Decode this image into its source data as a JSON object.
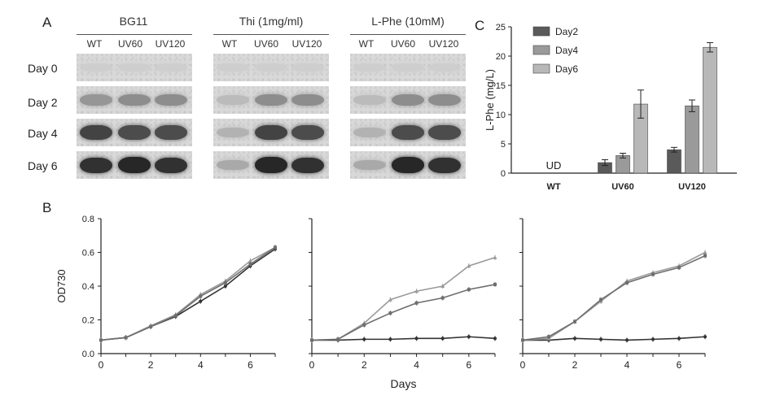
{
  "panel_labels": {
    "a": "A",
    "b": "B",
    "c": "C"
  },
  "panel_a": {
    "groups": [
      {
        "title": "BG11",
        "lanes": [
          "WT",
          "UV60",
          "UV120"
        ]
      },
      {
        "title": "Thi (1mg/ml)",
        "lanes": [
          "WT",
          "UV60",
          "UV120"
        ]
      },
      {
        "title": "L-Phe (10mM)",
        "lanes": [
          "WT",
          "UV60",
          "UV120"
        ]
      }
    ],
    "rows": [
      "Day 0",
      "Day 2",
      "Day 4",
      "Day 6"
    ],
    "band_intensity": [
      [
        [
          0.05,
          0.05,
          0.05
        ],
        [
          0.35,
          0.4,
          0.4
        ],
        [
          0.8,
          0.75,
          0.75
        ],
        [
          0.9,
          0.95,
          0.9
        ]
      ],
      [
        [
          0.05,
          0.05,
          0.05
        ],
        [
          0.15,
          0.4,
          0.4
        ],
        [
          0.2,
          0.8,
          0.75
        ],
        [
          0.25,
          0.95,
          0.9
        ]
      ],
      [
        [
          0.05,
          0.05,
          0.05
        ],
        [
          0.15,
          0.4,
          0.4
        ],
        [
          0.2,
          0.75,
          0.75
        ],
        [
          0.25,
          0.95,
          0.9
        ]
      ]
    ]
  },
  "colors": {
    "day2": "#5a5a5a",
    "day4": "#9a9a9a",
    "day6": "#b8b8b8",
    "line_dark": "#333333",
    "line_light": "#9a9a9a"
  },
  "chart_data": [
    {
      "type": "bar",
      "panel": "C",
      "categories": [
        "WT",
        "UV60",
        "UV120"
      ],
      "series": [
        {
          "name": "Day2",
          "values": [
            0,
            1.8,
            4.0
          ],
          "errors": [
            0,
            0.5,
            0.4
          ]
        },
        {
          "name": "Day4",
          "values": [
            0,
            3.0,
            11.5
          ],
          "errors": [
            0,
            0.4,
            1.0
          ]
        },
        {
          "name": "Day6",
          "values": [
            0,
            11.8,
            21.5
          ],
          "errors": [
            0,
            2.4,
            0.8
          ]
        }
      ],
      "annotation": "UD",
      "ylabel": "L-Phe (mg/L)",
      "ylim": [
        0,
        25
      ],
      "yticks": [
        0,
        5,
        10,
        15,
        20,
        25
      ]
    },
    {
      "type": "line",
      "panel": "B-1",
      "x": [
        0,
        1,
        2,
        3,
        4,
        5,
        6,
        7
      ],
      "series": [
        {
          "name": "WT",
          "values": [
            0.08,
            0.095,
            0.16,
            0.22,
            0.31,
            0.4,
            0.52,
            0.62
          ]
        },
        {
          "name": "UV60",
          "values": [
            0.08,
            0.095,
            0.165,
            0.23,
            0.35,
            0.43,
            0.55,
            0.63
          ]
        },
        {
          "name": "UV120",
          "values": [
            0.08,
            0.095,
            0.16,
            0.225,
            0.34,
            0.42,
            0.53,
            0.63
          ]
        }
      ],
      "xlabel": "",
      "ylabel": "OD730",
      "xlim": [
        0,
        7
      ],
      "ylim": [
        0,
        0.8
      ],
      "xticks": [
        0,
        2,
        4,
        6
      ],
      "yticks": [
        0.0,
        0.2,
        0.4,
        0.6,
        0.8
      ]
    },
    {
      "type": "line",
      "panel": "B-2",
      "x": [
        0,
        1,
        2,
        3,
        4,
        5,
        6,
        7
      ],
      "series": [
        {
          "name": "WT",
          "values": [
            0.08,
            0.08,
            0.085,
            0.085,
            0.09,
            0.09,
            0.1,
            0.09
          ]
        },
        {
          "name": "UV60",
          "values": [
            0.08,
            0.085,
            0.18,
            0.32,
            0.37,
            0.4,
            0.52,
            0.57
          ]
        },
        {
          "name": "UV120",
          "values": [
            0.08,
            0.085,
            0.17,
            0.24,
            0.3,
            0.33,
            0.38,
            0.41
          ]
        }
      ],
      "xlabel": "Days",
      "ylabel": "",
      "xlim": [
        0,
        7
      ],
      "ylim": [
        0,
        0.8
      ],
      "xticks": [
        0,
        2,
        4,
        6
      ],
      "yticks": []
    },
    {
      "type": "line",
      "panel": "B-3",
      "x": [
        0,
        1,
        2,
        3,
        4,
        5,
        6,
        7
      ],
      "series": [
        {
          "name": "WT",
          "values": [
            0.08,
            0.08,
            0.09,
            0.085,
            0.08,
            0.085,
            0.09,
            0.1
          ]
        },
        {
          "name": "UV60",
          "values": [
            0.08,
            0.09,
            0.19,
            0.31,
            0.43,
            0.48,
            0.52,
            0.6
          ]
        },
        {
          "name": "UV120",
          "values": [
            0.08,
            0.1,
            0.19,
            0.32,
            0.42,
            0.47,
            0.51,
            0.58
          ]
        }
      ],
      "xlabel": "",
      "ylabel": "",
      "xlim": [
        0,
        7
      ],
      "ylim": [
        0,
        0.8
      ],
      "xticks": [
        0,
        2,
        4,
        6
      ],
      "yticks": []
    }
  ]
}
